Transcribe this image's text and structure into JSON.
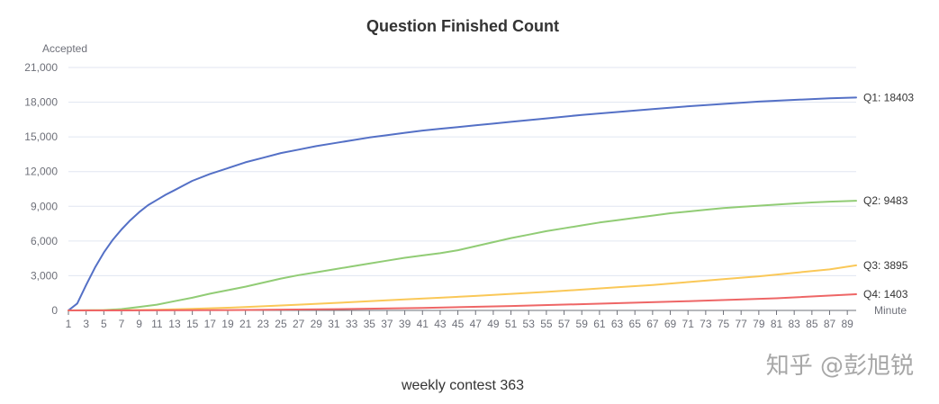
{
  "chart_data": {
    "type": "line",
    "title": "Question Finished Count",
    "ylabel": "Accepted",
    "xlabel": "Minute",
    "caption": "weekly contest 363",
    "watermark": "知乎 @彭旭锐",
    "xlim": [
      1,
      90
    ],
    "x_tick_labels": [
      "1",
      "3",
      "5",
      "7",
      "9",
      "11",
      "13",
      "15",
      "17",
      "19",
      "21",
      "23",
      "25",
      "27",
      "29",
      "31",
      "33",
      "35",
      "37",
      "39",
      "41",
      "43",
      "45",
      "47",
      "49",
      "51",
      "53",
      "55",
      "57",
      "59",
      "61",
      "63",
      "65",
      "67",
      "69",
      "71",
      "73",
      "75",
      "77",
      "79",
      "81",
      "83",
      "85",
      "87",
      "89"
    ],
    "ylim": [
      0,
      21000
    ],
    "y_ticks": [
      0,
      3000,
      6000,
      9000,
      12000,
      15000,
      18000,
      21000
    ],
    "y_tick_labels": [
      "0",
      "3,000",
      "6,000",
      "9,000",
      "12,000",
      "15,000",
      "18,000",
      "21,000"
    ],
    "grid": true,
    "series": [
      {
        "name": "Q1",
        "end_label": "Q1: 18403",
        "color": "#5470c6",
        "points": [
          [
            1,
            0
          ],
          [
            2,
            600
          ],
          [
            3,
            2200
          ],
          [
            4,
            3700
          ],
          [
            5,
            5000
          ],
          [
            6,
            6100
          ],
          [
            7,
            7000
          ],
          [
            8,
            7800
          ],
          [
            9,
            8500
          ],
          [
            10,
            9100
          ],
          [
            11,
            9550
          ],
          [
            12,
            10000
          ],
          [
            13,
            10400
          ],
          [
            14,
            10800
          ],
          [
            15,
            11200
          ],
          [
            17,
            11800
          ],
          [
            19,
            12300
          ],
          [
            21,
            12800
          ],
          [
            23,
            13200
          ],
          [
            25,
            13600
          ],
          [
            27,
            13900
          ],
          [
            29,
            14200
          ],
          [
            31,
            14450
          ],
          [
            33,
            14700
          ],
          [
            35,
            14950
          ],
          [
            37,
            15150
          ],
          [
            39,
            15350
          ],
          [
            41,
            15550
          ],
          [
            43,
            15700
          ],
          [
            45,
            15850
          ],
          [
            47,
            16000
          ],
          [
            49,
            16150
          ],
          [
            51,
            16300
          ],
          [
            55,
            16600
          ],
          [
            59,
            16900
          ],
          [
            63,
            17150
          ],
          [
            67,
            17400
          ],
          [
            71,
            17650
          ],
          [
            75,
            17850
          ],
          [
            79,
            18050
          ],
          [
            83,
            18200
          ],
          [
            87,
            18330
          ],
          [
            90,
            18403
          ]
        ]
      },
      {
        "name": "Q2",
        "end_label": "Q2: 9483",
        "color": "#91cc75",
        "points": [
          [
            1,
            0
          ],
          [
            5,
            30
          ],
          [
            7,
            120
          ],
          [
            9,
            300
          ],
          [
            11,
            500
          ],
          [
            13,
            800
          ],
          [
            15,
            1100
          ],
          [
            17,
            1450
          ],
          [
            19,
            1750
          ],
          [
            21,
            2050
          ],
          [
            23,
            2400
          ],
          [
            25,
            2750
          ],
          [
            27,
            3050
          ],
          [
            29,
            3300
          ],
          [
            31,
            3550
          ],
          [
            33,
            3800
          ],
          [
            35,
            4050
          ],
          [
            37,
            4300
          ],
          [
            39,
            4550
          ],
          [
            41,
            4750
          ],
          [
            43,
            4950
          ],
          [
            45,
            5200
          ],
          [
            47,
            5550
          ],
          [
            49,
            5900
          ],
          [
            51,
            6250
          ],
          [
            53,
            6550
          ],
          [
            55,
            6850
          ],
          [
            57,
            7100
          ],
          [
            59,
            7350
          ],
          [
            61,
            7600
          ],
          [
            63,
            7800
          ],
          [
            65,
            8000
          ],
          [
            67,
            8200
          ],
          [
            69,
            8400
          ],
          [
            71,
            8550
          ],
          [
            73,
            8700
          ],
          [
            75,
            8850
          ],
          [
            77,
            8950
          ],
          [
            79,
            9050
          ],
          [
            81,
            9150
          ],
          [
            83,
            9250
          ],
          [
            85,
            9330
          ],
          [
            87,
            9400
          ],
          [
            90,
            9483
          ]
        ]
      },
      {
        "name": "Q3",
        "end_label": "Q3: 3895",
        "color": "#fac858",
        "points": [
          [
            1,
            0
          ],
          [
            7,
            20
          ],
          [
            11,
            60
          ],
          [
            15,
            130
          ],
          [
            19,
            230
          ],
          [
            23,
            360
          ],
          [
            27,
            500
          ],
          [
            31,
            640
          ],
          [
            35,
            800
          ],
          [
            39,
            960
          ],
          [
            43,
            1100
          ],
          [
            47,
            1250
          ],
          [
            51,
            1430
          ],
          [
            55,
            1600
          ],
          [
            59,
            1800
          ],
          [
            63,
            2000
          ],
          [
            67,
            2200
          ],
          [
            71,
            2450
          ],
          [
            75,
            2700
          ],
          [
            79,
            2950
          ],
          [
            83,
            3250
          ],
          [
            87,
            3550
          ],
          [
            90,
            3895
          ]
        ]
      },
      {
        "name": "Q4",
        "end_label": "Q4: 1403",
        "color": "#ee6666",
        "points": [
          [
            1,
            0
          ],
          [
            11,
            10
          ],
          [
            21,
            40
          ],
          [
            31,
            110
          ],
          [
            41,
            220
          ],
          [
            51,
            380
          ],
          [
            61,
            580
          ],
          [
            71,
            800
          ],
          [
            81,
            1050
          ],
          [
            90,
            1403
          ]
        ]
      }
    ]
  }
}
